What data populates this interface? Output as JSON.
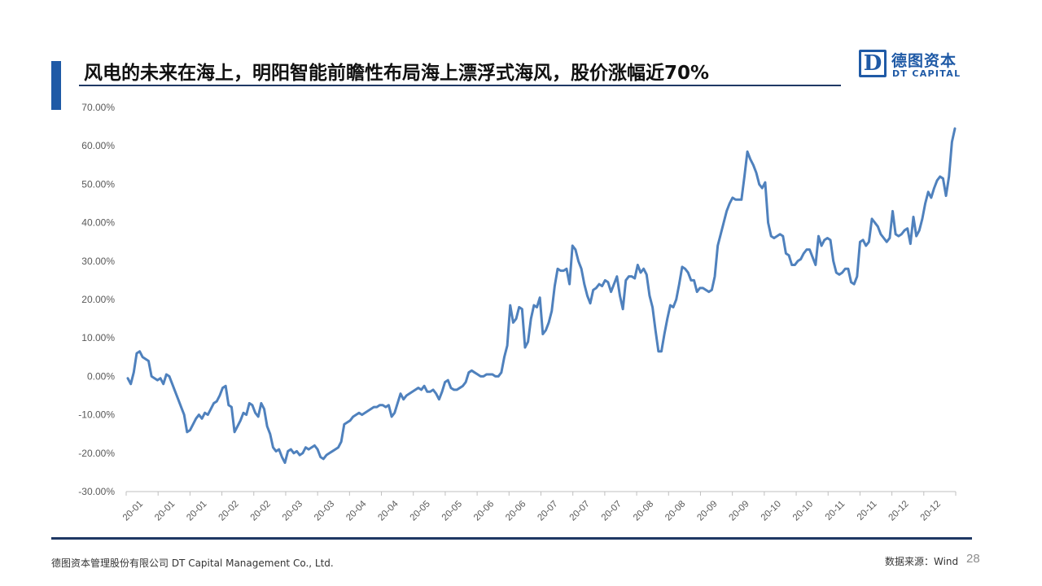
{
  "slide": {
    "title": "风电的未来在海上，明阳智能前瞻性布局海上漂浮式海风，股价涨幅近70%",
    "logo": {
      "letter": "D",
      "cn": "德图资本",
      "en": "DT CAPITAL"
    },
    "footer": {
      "company": "德图资本管理股份有限公司 DT Capital Management Co., Ltd.",
      "source": "数据来源：Wind",
      "page": "28"
    },
    "colors": {
      "accent": "#1f5aa6",
      "line": "#4f81bd",
      "rule": "#1f3864"
    }
  },
  "chart_data": {
    "type": "line",
    "title": "",
    "xlabel": "",
    "ylabel": "",
    "ylim": [
      -30,
      70
    ],
    "ytick_labels": [
      "70.00%",
      "60.00%",
      "50.00%",
      "40.00%",
      "30.00%",
      "20.00%",
      "10.00%",
      "0.00%",
      "-10.00%",
      "-20.00%",
      "-30.00%"
    ],
    "ytick_values": [
      70,
      60,
      50,
      40,
      30,
      20,
      10,
      0,
      -10,
      -20,
      -30
    ],
    "x_tick_labels": [
      "20-01",
      "20-01",
      "20-01",
      "20-02",
      "20-02",
      "20-03",
      "20-03",
      "20-04",
      "20-04",
      "20-05",
      "20-05",
      "20-06",
      "20-06",
      "20-07",
      "20-07",
      "20-07",
      "20-08",
      "20-08",
      "20-09",
      "20-09",
      "20-10",
      "20-10",
      "20-11",
      "20-11",
      "20-12",
      "20-12"
    ],
    "grid": false,
    "legend": "none",
    "series": [
      {
        "values": [
          -0.5,
          -2,
          1,
          6,
          6.5,
          5,
          4.5,
          4,
          0,
          -0.5,
          -1,
          -0.5,
          -2,
          0.5,
          0,
          -2,
          -4,
          -6,
          -8,
          -10,
          -14.5,
          -14,
          -12.5,
          -11,
          -10,
          -11,
          -9.5,
          -10,
          -8.5,
          -7,
          -6.5,
          -5,
          -3,
          -2.5,
          -7.5,
          -8,
          -14.5,
          -13,
          -11.5,
          -9.5,
          -10,
          -7,
          -7.5,
          -9.5,
          -10.5,
          -7,
          -8.5,
          -13,
          -15,
          -18.5,
          -19.5,
          -19,
          -21,
          -22.5,
          -19.5,
          -19,
          -20,
          -19.5,
          -20.5,
          -20,
          -18.5,
          -19,
          -18.5,
          -18,
          -19,
          -21,
          -21.5,
          -20.5,
          -20,
          -19.5,
          -19,
          -18.5,
          -17,
          -12.5,
          -12,
          -11.5,
          -10.5,
          -10,
          -9.5,
          -10,
          -9.5,
          -9,
          -8.5,
          -8,
          -8,
          -7.5,
          -7.5,
          -8,
          -7.5,
          -10.5,
          -9.5,
          -7,
          -4.5,
          -6,
          -5,
          -4.5,
          -4,
          -3.5,
          -3,
          -3.5,
          -2.5,
          -4,
          -4,
          -3.5,
          -4.5,
          -6,
          -4,
          -1.5,
          -1,
          -3,
          -3.5,
          -3.5,
          -3,
          -2.5,
          -1.5,
          1,
          1.5,
          1,
          0.5,
          0,
          0,
          0.5,
          0.5,
          0.5,
          0,
          0,
          1,
          5,
          8,
          18.5,
          14,
          15,
          18,
          17.5,
          7.5,
          9,
          15,
          18.5,
          18,
          20.5,
          11,
          12,
          14,
          17,
          23.5,
          28,
          27.5,
          27.5,
          28,
          24,
          34,
          33,
          30,
          28,
          24,
          21,
          19,
          22.5,
          23,
          24,
          23.5,
          25,
          24.5,
          22,
          24,
          26,
          21,
          17.5,
          25,
          26,
          26,
          25.5,
          29,
          27,
          28,
          26.5,
          21,
          18,
          12,
          6.5,
          6.5,
          11,
          15,
          18.5,
          18,
          20,
          24,
          28.5,
          28,
          27,
          25,
          25,
          22,
          23,
          23,
          22.5,
          22,
          22.5,
          26,
          34,
          37,
          40,
          43,
          45,
          46.5,
          46,
          46,
          46,
          52,
          58.5,
          56.5,
          55,
          53,
          50,
          49,
          50.5,
          40,
          36.5,
          36,
          36.5,
          37,
          36.5,
          32,
          31.5,
          29,
          29,
          30,
          30.5,
          32,
          33,
          33,
          31,
          29,
          36.5,
          34,
          35.5,
          36,
          35.5,
          30,
          27,
          26.5,
          27,
          28,
          28,
          24.5,
          24,
          26,
          35,
          35.5,
          34,
          35,
          41,
          40,
          39,
          37,
          36,
          35,
          36,
          43,
          37,
          36.5,
          37,
          38,
          38.5,
          34.5,
          41.5,
          36.5,
          38,
          41,
          45,
          48,
          46.5,
          49,
          51,
          52,
          51.5,
          47,
          52,
          61,
          64.5
        ]
      }
    ]
  }
}
